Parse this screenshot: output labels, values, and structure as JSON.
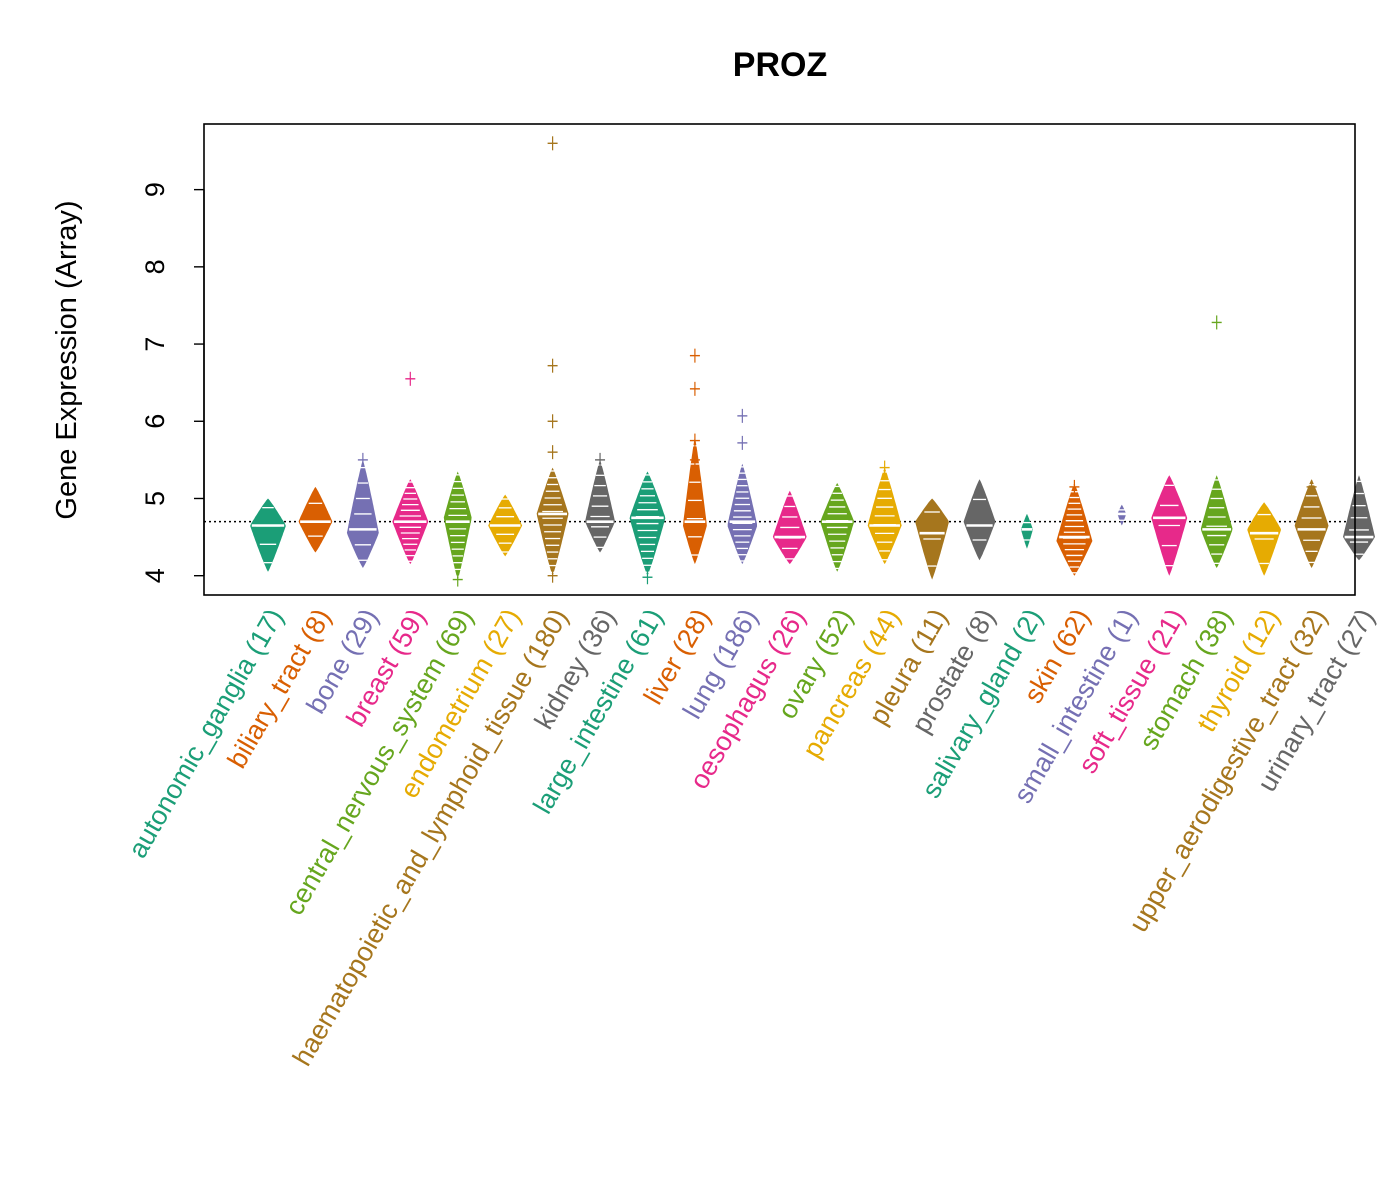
{
  "chart_data": {
    "type": "beanplot",
    "title": "PROZ",
    "xlabel": "",
    "ylabel": "Gene Expression (Array)",
    "ylim": [
      3.75,
      9.85
    ],
    "yticks": [
      4,
      5,
      6,
      7,
      8,
      9
    ],
    "reference_line": 4.7,
    "categories": [
      {
        "label": "autonomic_ganglia (17)",
        "n": 17,
        "color": "#1b9e77",
        "min": 4.05,
        "max": 5.0,
        "median": 4.65,
        "peak": 4.65,
        "width": 0.9,
        "outliers": []
      },
      {
        "label": "biliary_tract (8)",
        "n": 8,
        "color": "#d95f02",
        "min": 4.3,
        "max": 5.15,
        "median": 4.7,
        "peak": 4.7,
        "width": 0.85,
        "outliers": []
      },
      {
        "label": "bone (29)",
        "n": 29,
        "color": "#7570b3",
        "min": 4.1,
        "max": 5.5,
        "median": 4.6,
        "peak": 4.55,
        "width": 0.8,
        "outliers": [
          5.5
        ]
      },
      {
        "label": "breast (59)",
        "n": 59,
        "color": "#e7298a",
        "min": 4.15,
        "max": 5.25,
        "median": 4.7,
        "peak": 4.7,
        "width": 0.9,
        "outliers": [
          6.55
        ]
      },
      {
        "label": "central_nervous_system (69)",
        "n": 69,
        "color": "#66a61e",
        "min": 3.95,
        "max": 5.35,
        "median": 4.7,
        "peak": 4.75,
        "width": 0.7,
        "outliers": [
          3.95
        ]
      },
      {
        "label": "endometrium (27)",
        "n": 27,
        "color": "#e6ab02",
        "min": 4.25,
        "max": 5.05,
        "median": 4.65,
        "peak": 4.65,
        "width": 0.85,
        "outliers": []
      },
      {
        "label": "haematopoietic_and_lymphoid_tissue (180)",
        "n": 180,
        "color": "#a6761d",
        "min": 4.0,
        "max": 5.4,
        "median": 4.8,
        "peak": 4.8,
        "width": 0.8,
        "outliers": [
          9.6,
          6.72,
          6.0,
          5.6,
          4.0
        ]
      },
      {
        "label": "kidney (36)",
        "n": 36,
        "color": "#666666",
        "min": 4.3,
        "max": 5.5,
        "median": 4.7,
        "peak": 4.7,
        "width": 0.75,
        "outliers": [
          5.5
        ]
      },
      {
        "label": "large_intestine (61)",
        "n": 61,
        "color": "#1b9e77",
        "min": 4.0,
        "max": 5.35,
        "median": 4.75,
        "peak": 4.75,
        "width": 0.9,
        "outliers": [
          3.98
        ]
      },
      {
        "label": "liver (28)",
        "n": 28,
        "color": "#d95f02",
        "min": 4.15,
        "max": 5.8,
        "median": 4.7,
        "peak": 4.65,
        "width": 0.6,
        "outliers": [
          6.85,
          6.42,
          5.75,
          5.5
        ]
      },
      {
        "label": "lung (186)",
        "n": 186,
        "color": "#7570b3",
        "min": 4.15,
        "max": 5.45,
        "median": 4.7,
        "peak": 4.65,
        "width": 0.75,
        "outliers": [
          6.07,
          5.72
        ]
      },
      {
        "label": "oesophagus (26)",
        "n": 26,
        "color": "#e7298a",
        "min": 4.15,
        "max": 5.1,
        "median": 4.5,
        "peak": 4.5,
        "width": 0.85,
        "outliers": []
      },
      {
        "label": "ovary (52)",
        "n": 52,
        "color": "#66a61e",
        "min": 4.05,
        "max": 5.2,
        "median": 4.7,
        "peak": 4.7,
        "width": 0.85,
        "outliers": []
      },
      {
        "label": "pancreas (44)",
        "n": 44,
        "color": "#e6ab02",
        "min": 4.15,
        "max": 5.4,
        "median": 4.65,
        "peak": 4.65,
        "width": 0.85,
        "outliers": [
          5.4
        ]
      },
      {
        "label": "pleura (11)",
        "n": 11,
        "color": "#a6761d",
        "min": 3.95,
        "max": 5.0,
        "median": 4.55,
        "peak": 4.7,
        "width": 0.85,
        "outliers": []
      },
      {
        "label": "prostate (8)",
        "n": 8,
        "color": "#666666",
        "min": 4.2,
        "max": 5.25,
        "median": 4.65,
        "peak": 4.7,
        "width": 0.8,
        "outliers": []
      },
      {
        "label": "salivary_gland (2)",
        "n": 2,
        "color": "#1b9e77",
        "min": 4.35,
        "max": 4.8,
        "median": 4.6,
        "peak": 4.6,
        "width": 0.3,
        "outliers": []
      },
      {
        "label": "skin (62)",
        "n": 62,
        "color": "#d95f02",
        "min": 4.0,
        "max": 5.2,
        "median": 4.5,
        "peak": 4.45,
        "width": 0.9,
        "outliers": [
          5.15
        ]
      },
      {
        "label": "small_intestine (1)",
        "n": 1,
        "color": "#7570b3",
        "min": 4.65,
        "max": 4.92,
        "median": 4.8,
        "peak": 4.8,
        "width": 0.22,
        "outliers": []
      },
      {
        "label": "soft_tissue (21)",
        "n": 21,
        "color": "#e7298a",
        "min": 4.0,
        "max": 5.3,
        "median": 4.75,
        "peak": 4.75,
        "width": 0.9,
        "outliers": []
      },
      {
        "label": "stomach (38)",
        "n": 38,
        "color": "#66a61e",
        "min": 4.1,
        "max": 5.3,
        "median": 4.6,
        "peak": 4.6,
        "width": 0.8,
        "outliers": [
          7.28
        ]
      },
      {
        "label": "thyroid (12)",
        "n": 12,
        "color": "#e6ab02",
        "min": 4.0,
        "max": 4.95,
        "median": 4.55,
        "peak": 4.6,
        "width": 0.85,
        "outliers": []
      },
      {
        "label": "upper_aerodigestive_tract (32)",
        "n": 32,
        "color": "#a6761d",
        "min": 4.1,
        "max": 5.25,
        "median": 4.6,
        "peak": 4.65,
        "width": 0.85,
        "outliers": [
          5.15
        ]
      },
      {
        "label": "urinary_tract (27)",
        "n": 27,
        "color": "#666666",
        "min": 4.2,
        "max": 5.3,
        "median": 4.5,
        "peak": 4.5,
        "width": 0.8,
        "outliers": []
      }
    ]
  }
}
